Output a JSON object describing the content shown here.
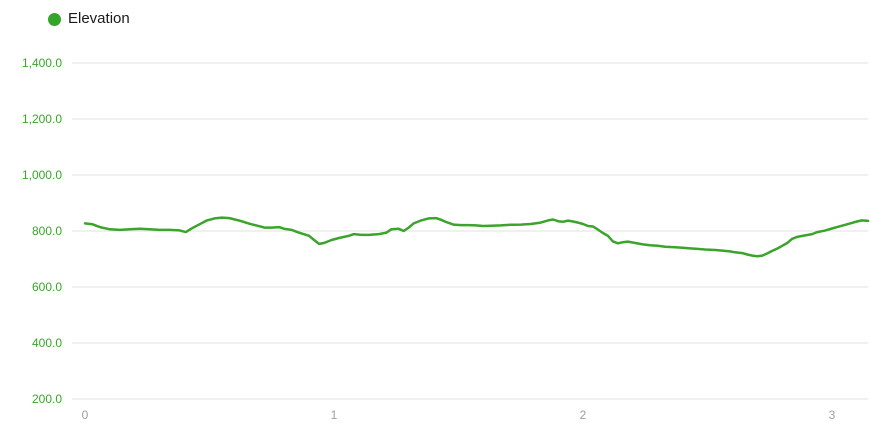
{
  "legend": {
    "label": "Elevation",
    "dot_color": "#35a42a"
  },
  "colors": {
    "line": "#3aa42b",
    "y_tick_label": "#3aa42b",
    "x_tick_label": "#9e9e9e",
    "gridline": "#e0e0e0",
    "background": "#ffffff",
    "legend_text": "#1a1a1a"
  },
  "chart_data": {
    "type": "line",
    "title": "",
    "xlabel": "",
    "ylabel": "",
    "legend": [
      "Elevation"
    ],
    "legend_position": "top-left",
    "grid": "horizontal-only",
    "ylim": [
      200,
      1400
    ],
    "xlim": [
      0,
      3.15
    ],
    "y_ticks": [
      {
        "value": 200,
        "label": "200.0"
      },
      {
        "value": 400,
        "label": "400.0"
      },
      {
        "value": 600,
        "label": "600.0"
      },
      {
        "value": 800,
        "label": "800.0"
      },
      {
        "value": 1000,
        "label": "1,000.0"
      },
      {
        "value": 1200,
        "label": "1,200.0"
      },
      {
        "value": 1400,
        "label": "1,400.0"
      }
    ],
    "x_ticks": [
      {
        "value": 0,
        "label": "0"
      },
      {
        "value": 1,
        "label": "1"
      },
      {
        "value": 2,
        "label": "2"
      },
      {
        "value": 3,
        "label": "3"
      }
    ],
    "series": [
      {
        "name": "Elevation",
        "color": "#3aa42b",
        "points": [
          [
            0.0,
            827
          ],
          [
            0.03,
            824
          ],
          [
            0.06,
            814
          ],
          [
            0.1,
            806
          ],
          [
            0.14,
            804
          ],
          [
            0.18,
            806
          ],
          [
            0.22,
            808
          ],
          [
            0.26,
            806
          ],
          [
            0.3,
            804
          ],
          [
            0.34,
            804
          ],
          [
            0.38,
            802
          ],
          [
            0.405,
            796
          ],
          [
            0.43,
            810
          ],
          [
            0.46,
            824
          ],
          [
            0.49,
            838
          ],
          [
            0.52,
            845
          ],
          [
            0.55,
            848
          ],
          [
            0.58,
            846
          ],
          [
            0.62,
            837
          ],
          [
            0.66,
            826
          ],
          [
            0.7,
            817
          ],
          [
            0.72,
            812
          ],
          [
            0.75,
            812
          ],
          [
            0.78,
            814
          ],
          [
            0.8,
            808
          ],
          [
            0.83,
            804
          ],
          [
            0.86,
            794
          ],
          [
            0.9,
            783
          ],
          [
            0.92,
            768
          ],
          [
            0.94,
            754
          ],
          [
            0.96,
            757
          ],
          [
            0.99,
            768
          ],
          [
            1.02,
            775
          ],
          [
            1.06,
            783
          ],
          [
            1.08,
            789
          ],
          [
            1.11,
            786
          ],
          [
            1.14,
            786
          ],
          [
            1.18,
            789
          ],
          [
            1.21,
            794
          ],
          [
            1.23,
            806
          ],
          [
            1.26,
            808
          ],
          [
            1.28,
            800
          ],
          [
            1.3,
            812
          ],
          [
            1.32,
            827
          ],
          [
            1.35,
            838
          ],
          [
            1.38,
            845
          ],
          [
            1.41,
            846
          ],
          [
            1.43,
            840
          ],
          [
            1.45,
            832
          ],
          [
            1.48,
            823
          ],
          [
            1.51,
            821
          ],
          [
            1.54,
            821
          ],
          [
            1.57,
            820
          ],
          [
            1.6,
            818
          ],
          [
            1.63,
            819
          ],
          [
            1.67,
            820
          ],
          [
            1.71,
            822
          ],
          [
            1.75,
            823
          ],
          [
            1.79,
            825
          ],
          [
            1.83,
            830
          ],
          [
            1.86,
            838
          ],
          [
            1.88,
            841
          ],
          [
            1.9,
            835
          ],
          [
            1.92,
            833
          ],
          [
            1.94,
            837
          ],
          [
            1.96,
            834
          ],
          [
            1.98,
            830
          ],
          [
            2.0,
            825
          ],
          [
            2.02,
            818
          ],
          [
            2.04,
            816
          ],
          [
            2.06,
            805
          ],
          [
            2.08,
            793
          ],
          [
            2.1,
            783
          ],
          [
            2.12,
            763
          ],
          [
            2.14,
            756
          ],
          [
            2.16,
            760
          ],
          [
            2.18,
            762
          ],
          [
            2.21,
            757
          ],
          [
            2.24,
            752
          ],
          [
            2.27,
            749
          ],
          [
            2.3,
            747
          ],
          [
            2.33,
            744
          ],
          [
            2.37,
            742
          ],
          [
            2.4,
            740
          ],
          [
            2.43,
            738
          ],
          [
            2.46,
            736
          ],
          [
            2.49,
            734
          ],
          [
            2.53,
            732
          ],
          [
            2.56,
            730
          ],
          [
            2.59,
            727
          ],
          [
            2.61,
            724
          ],
          [
            2.64,
            721
          ],
          [
            2.66,
            716
          ],
          [
            2.68,
            712
          ],
          [
            2.7,
            710
          ],
          [
            2.72,
            712
          ],
          [
            2.74,
            720
          ],
          [
            2.76,
            729
          ],
          [
            2.78,
            737
          ],
          [
            2.8,
            747
          ],
          [
            2.82,
            757
          ],
          [
            2.84,
            772
          ],
          [
            2.86,
            779
          ],
          [
            2.89,
            784
          ],
          [
            2.92,
            789
          ],
          [
            2.94,
            796
          ],
          [
            2.97,
            801
          ],
          [
            3.0,
            809
          ],
          [
            3.02,
            814
          ],
          [
            3.05,
            821
          ],
          [
            3.08,
            829
          ],
          [
            3.1,
            834
          ],
          [
            3.12,
            838
          ],
          [
            3.145,
            836
          ]
        ]
      }
    ]
  }
}
